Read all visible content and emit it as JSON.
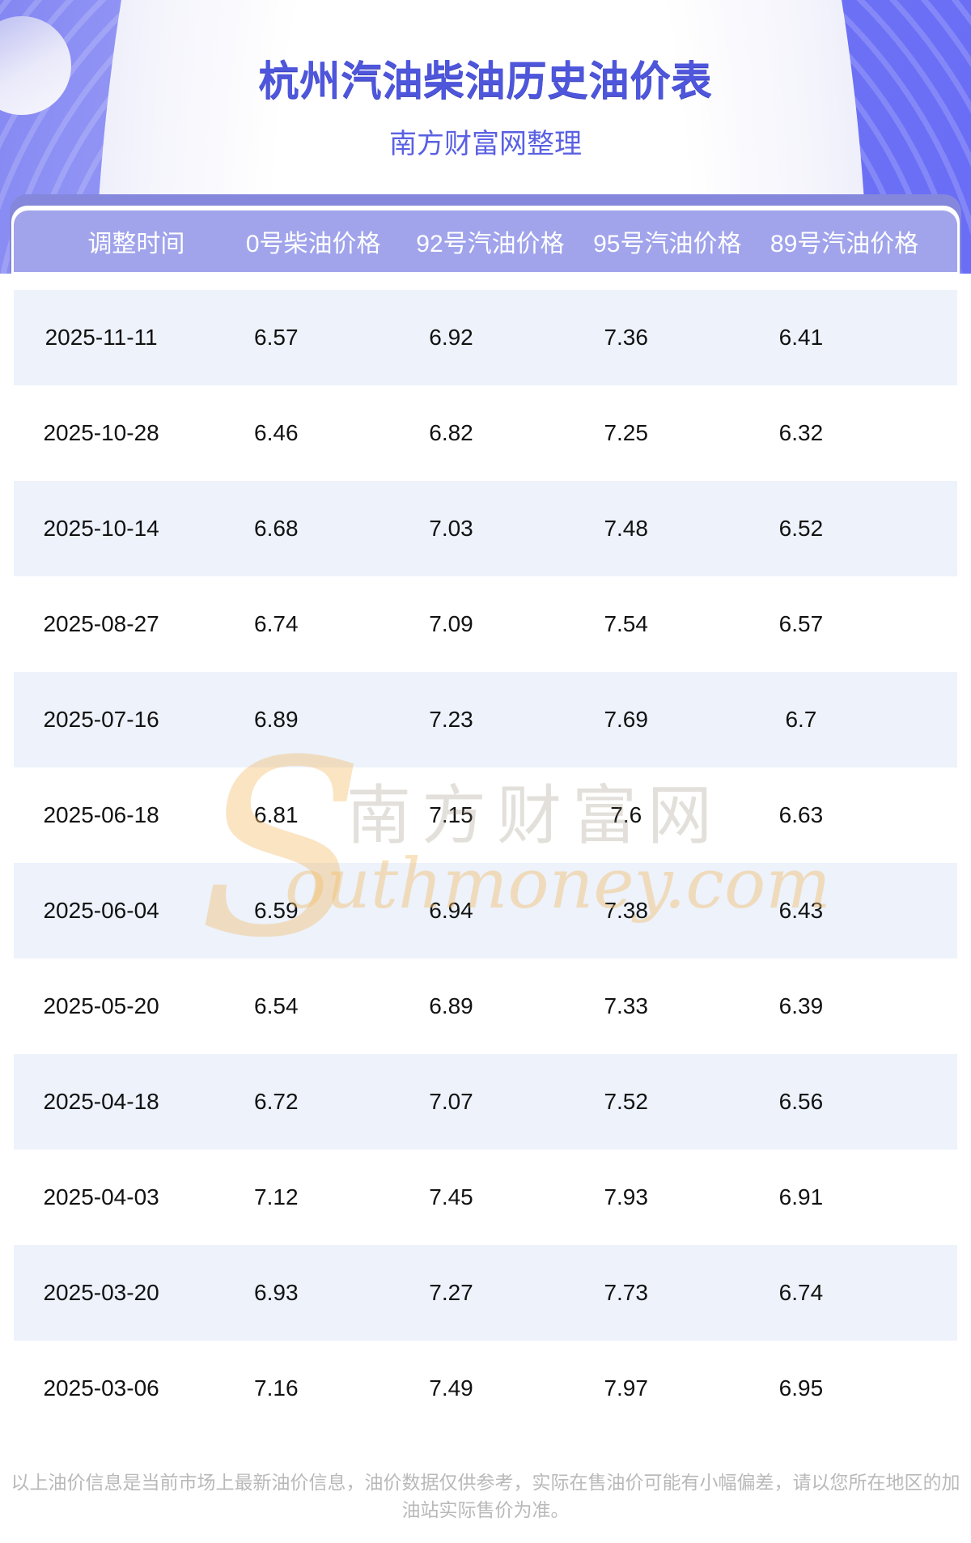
{
  "header": {
    "title": "杭州汽油柴油历史油价表",
    "subtitle": "南方财富网整理"
  },
  "table": {
    "columns": [
      "调整时间",
      "0号柴油价格",
      "92号汽油价格",
      "95号汽油价格",
      "89号汽油价格"
    ],
    "rows": [
      [
        "2025-11-11",
        "6.57",
        "6.92",
        "7.36",
        "6.41"
      ],
      [
        "2025-10-28",
        "6.46",
        "6.82",
        "7.25",
        "6.32"
      ],
      [
        "2025-10-14",
        "6.68",
        "7.03",
        "7.48",
        "6.52"
      ],
      [
        "2025-08-27",
        "6.74",
        "7.09",
        "7.54",
        "6.57"
      ],
      [
        "2025-07-16",
        "6.89",
        "7.23",
        "7.69",
        "6.7"
      ],
      [
        "2025-06-18",
        "6.81",
        "7.15",
        "7.6",
        "6.63"
      ],
      [
        "2025-06-04",
        "6.59",
        "6.94",
        "7.38",
        "6.43"
      ],
      [
        "2025-05-20",
        "6.54",
        "6.89",
        "7.33",
        "6.39"
      ],
      [
        "2025-04-18",
        "6.72",
        "7.07",
        "7.52",
        "6.56"
      ],
      [
        "2025-04-03",
        "7.12",
        "7.45",
        "7.93",
        "6.91"
      ],
      [
        "2025-03-20",
        "6.93",
        "7.27",
        "7.73",
        "6.74"
      ],
      [
        "2025-03-06",
        "7.16",
        "7.49",
        "7.97",
        "6.95"
      ]
    ]
  },
  "watermark": {
    "initial": "S",
    "brand_cn": "南方财富网",
    "brand_en_rest": "outhmoney.com"
  },
  "footer": {
    "disclaimer": "以上油价信息是当前市场上最新油价信息，油价数据仅供参考，实际在售油价可能有小幅偏差，请以您所在地区的加油站实际售价为准。"
  },
  "colors": {
    "accent_purple": "#6a6ef6",
    "band_dark": "#8487db",
    "band_light": "#a1a4eb",
    "row_alt_blue": "#edf2fb",
    "title_blue": "#4e56db",
    "watermark_orange": "#f2be6e",
    "footer_gray": "#b9b9b9"
  }
}
